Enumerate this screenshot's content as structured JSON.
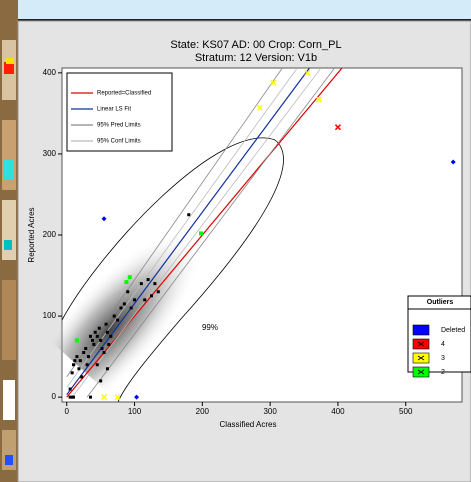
{
  "chart_data": {
    "type": "scatter",
    "title": "State: KS07   AD: 00   Crop: Corn_PL",
    "subtitle": "Stratum: 12   Version: V1b",
    "x_label": "Classified Acres",
    "y_label": "Reported Acres",
    "xlim": [
      -7,
      583
    ],
    "ylim": [
      -6,
      406
    ],
    "xticks": [
      0,
      100,
      200,
      300,
      400,
      500
    ],
    "yticks": [
      0,
      100,
      200,
      300,
      400
    ],
    "annotation": "99%",
    "points": {
      "color": "#000000",
      "x": [
        5,
        8,
        10,
        12,
        15,
        18,
        20,
        22,
        25,
        28,
        30,
        32,
        35,
        38,
        40,
        42,
        45,
        48,
        50,
        52,
        55,
        58,
        60,
        62,
        65,
        70,
        75,
        80,
        85,
        90,
        95,
        100,
        110,
        115,
        120,
        125,
        130,
        135,
        180,
        5,
        8,
        10,
        35,
        50,
        45,
        60
      ],
      "y": [
        10,
        30,
        40,
        45,
        50,
        35,
        45,
        25,
        55,
        60,
        40,
        50,
        75,
        70,
        65,
        80,
        75,
        85,
        70,
        60,
        55,
        90,
        80,
        65,
        75,
        100,
        95,
        110,
        115,
        130,
        110,
        120,
        140,
        120,
        145,
        125,
        140,
        130,
        225,
        0,
        0,
        0,
        0,
        20,
        40,
        35
      ]
    },
    "lines": [
      {
        "name": "Reported=Classified",
        "color": "#e00000",
        "x": [
          0,
          406
        ],
        "y": [
          0,
          406
        ]
      },
      {
        "name": "Linear LS Fit",
        "color": "#1030a0",
        "x": [
          0,
          358
        ],
        "y": [
          3,
          406
        ]
      },
      {
        "name": "95% Pred Limits",
        "color": "#888888",
        "x": [
          0,
          318,
          null,
          30,
          395
        ],
        "y": [
          25,
          406,
          null,
          0,
          406
        ]
      },
      {
        "name": "95% Conf Limits",
        "color": "#bbbbbb",
        "x": [
          0,
          340,
          null,
          8,
          375
        ],
        "y": [
          12,
          406,
          null,
          0,
          406
        ]
      }
    ],
    "outliers_title": "Outliers",
    "series": [
      {
        "name": "Deleted",
        "color": "#0000ff",
        "marker": "diamond",
        "x": [
          55,
          570,
          103
        ],
        "y": [
          220,
          290,
          0
        ]
      },
      {
        "name": "4",
        "color": "#ff0000",
        "marker": "x",
        "x": [
          400
        ],
        "y": [
          333
        ]
      },
      {
        "name": "3",
        "color": "#ffff00",
        "marker": "x",
        "x": [
          285,
          305,
          355,
          372,
          55,
          75
        ],
        "y": [
          357,
          388,
          400,
          367,
          0,
          0
        ]
      },
      {
        "name": "2",
        "color": "#00ff00",
        "marker": "square",
        "x": [
          15,
          88,
          93,
          198
        ],
        "y": [
          70,
          142,
          148,
          202
        ]
      }
    ]
  }
}
